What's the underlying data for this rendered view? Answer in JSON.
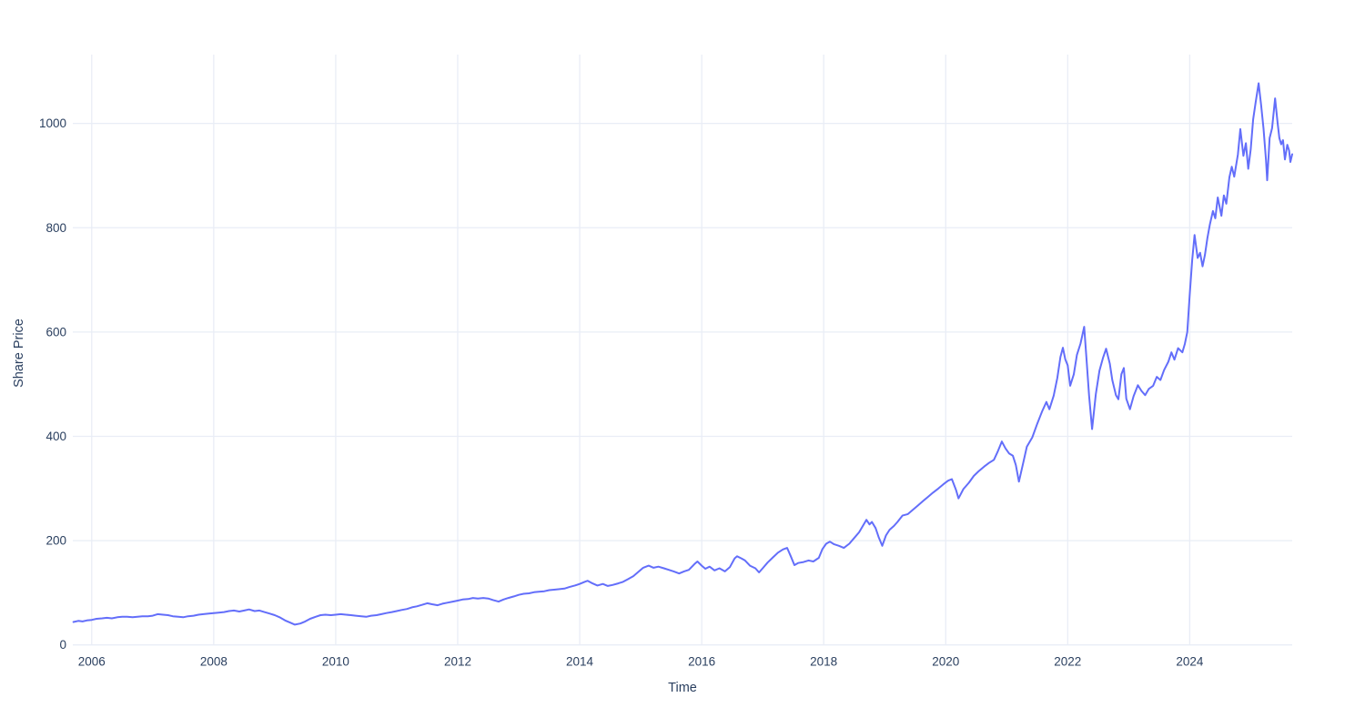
{
  "chart_data": {
    "type": "line",
    "title": "",
    "xlabel": "Time",
    "ylabel": "Share Price",
    "legend_position": "none",
    "grid": true,
    "xlim": [
      2005.69,
      2025.68
    ],
    "ylim": [
      0,
      1132
    ],
    "x_ticks": {
      "values": [
        2006,
        2008,
        2010,
        2012,
        2014,
        2016,
        2018,
        2020,
        2022,
        2024
      ],
      "labels": [
        "2006",
        "2008",
        "2010",
        "2012",
        "2014",
        "2016",
        "2018",
        "2020",
        "2022",
        "2024"
      ]
    },
    "y_ticks": {
      "values": [
        0,
        200,
        400,
        600,
        800,
        1000
      ],
      "labels": [
        "0",
        "200",
        "400",
        "600",
        "800",
        "1000"
      ]
    },
    "colors": {
      "line": "#636EFA",
      "grid": "#E9EDF6",
      "text": "#2a3f5f",
      "background": "#ffffff"
    },
    "series": [
      {
        "name": "Share Price",
        "points": [
          [
            2005.7,
            44
          ],
          [
            2005.78,
            46
          ],
          [
            2005.85,
            45
          ],
          [
            2005.92,
            47
          ],
          [
            2006.0,
            48
          ],
          [
            2006.08,
            50
          ],
          [
            2006.17,
            51
          ],
          [
            2006.25,
            52
          ],
          [
            2006.33,
            51
          ],
          [
            2006.42,
            53
          ],
          [
            2006.5,
            54
          ],
          [
            2006.58,
            54
          ],
          [
            2006.67,
            53
          ],
          [
            2006.75,
            54
          ],
          [
            2006.83,
            55
          ],
          [
            2006.92,
            55
          ],
          [
            2007.0,
            56
          ],
          [
            2007.08,
            59
          ],
          [
            2007.17,
            58
          ],
          [
            2007.25,
            57
          ],
          [
            2007.33,
            55
          ],
          [
            2007.42,
            54
          ],
          [
            2007.5,
            53
          ],
          [
            2007.58,
            55
          ],
          [
            2007.67,
            56
          ],
          [
            2007.75,
            58
          ],
          [
            2007.83,
            59
          ],
          [
            2007.92,
            60
          ],
          [
            2008.0,
            61
          ],
          [
            2008.08,
            62
          ],
          [
            2008.17,
            63
          ],
          [
            2008.25,
            65
          ],
          [
            2008.33,
            66
          ],
          [
            2008.42,
            64
          ],
          [
            2008.5,
            66
          ],
          [
            2008.58,
            68
          ],
          [
            2008.67,
            65
          ],
          [
            2008.75,
            66
          ],
          [
            2008.83,
            63
          ],
          [
            2008.92,
            60
          ],
          [
            2009.0,
            57
          ],
          [
            2009.08,
            53
          ],
          [
            2009.17,
            47
          ],
          [
            2009.25,
            43
          ],
          [
            2009.33,
            39
          ],
          [
            2009.42,
            41
          ],
          [
            2009.5,
            45
          ],
          [
            2009.58,
            50
          ],
          [
            2009.67,
            54
          ],
          [
            2009.75,
            57
          ],
          [
            2009.83,
            58
          ],
          [
            2009.92,
            57
          ],
          [
            2010.0,
            58
          ],
          [
            2010.08,
            59
          ],
          [
            2010.17,
            58
          ],
          [
            2010.25,
            57
          ],
          [
            2010.33,
            56
          ],
          [
            2010.42,
            55
          ],
          [
            2010.5,
            54
          ],
          [
            2010.58,
            56
          ],
          [
            2010.67,
            57
          ],
          [
            2010.75,
            59
          ],
          [
            2010.83,
            61
          ],
          [
            2010.92,
            63
          ],
          [
            2011.0,
            65
          ],
          [
            2011.08,
            67
          ],
          [
            2011.17,
            69
          ],
          [
            2011.25,
            72
          ],
          [
            2011.33,
            74
          ],
          [
            2011.42,
            77
          ],
          [
            2011.5,
            80
          ],
          [
            2011.58,
            78
          ],
          [
            2011.67,
            76
          ],
          [
            2011.75,
            79
          ],
          [
            2011.83,
            81
          ],
          [
            2011.92,
            83
          ],
          [
            2012.0,
            85
          ],
          [
            2012.08,
            87
          ],
          [
            2012.17,
            88
          ],
          [
            2012.25,
            90
          ],
          [
            2012.33,
            89
          ],
          [
            2012.42,
            90
          ],
          [
            2012.5,
            89
          ],
          [
            2012.58,
            86
          ],
          [
            2012.67,
            83
          ],
          [
            2012.75,
            87
          ],
          [
            2012.83,
            90
          ],
          [
            2012.92,
            93
          ],
          [
            2013.0,
            96
          ],
          [
            2013.08,
            98
          ],
          [
            2013.17,
            99
          ],
          [
            2013.25,
            101
          ],
          [
            2013.33,
            102
          ],
          [
            2013.42,
            103
          ],
          [
            2013.5,
            105
          ],
          [
            2013.58,
            106
          ],
          [
            2013.67,
            107
          ],
          [
            2013.75,
            108
          ],
          [
            2013.83,
            111
          ],
          [
            2013.92,
            114
          ],
          [
            2014.0,
            117
          ],
          [
            2014.08,
            121
          ],
          [
            2014.13,
            123
          ],
          [
            2014.21,
            118
          ],
          [
            2014.29,
            114
          ],
          [
            2014.38,
            117
          ],
          [
            2014.46,
            113
          ],
          [
            2014.54,
            115
          ],
          [
            2014.63,
            118
          ],
          [
            2014.71,
            121
          ],
          [
            2014.79,
            126
          ],
          [
            2014.88,
            132
          ],
          [
            2014.96,
            140
          ],
          [
            2015.04,
            148
          ],
          [
            2015.13,
            152
          ],
          [
            2015.21,
            148
          ],
          [
            2015.29,
            150
          ],
          [
            2015.38,
            147
          ],
          [
            2015.46,
            144
          ],
          [
            2015.54,
            141
          ],
          [
            2015.63,
            137
          ],
          [
            2015.71,
            141
          ],
          [
            2015.79,
            144
          ],
          [
            2015.88,
            155
          ],
          [
            2015.93,
            160
          ],
          [
            2016.0,
            152
          ],
          [
            2016.06,
            146
          ],
          [
            2016.13,
            150
          ],
          [
            2016.21,
            143
          ],
          [
            2016.29,
            147
          ],
          [
            2016.38,
            141
          ],
          [
            2016.46,
            149
          ],
          [
            2016.54,
            166
          ],
          [
            2016.58,
            170
          ],
          [
            2016.65,
            166
          ],
          [
            2016.71,
            162
          ],
          [
            2016.79,
            152
          ],
          [
            2016.88,
            147
          ],
          [
            2016.94,
            139
          ],
          [
            2017.0,
            147
          ],
          [
            2017.08,
            158
          ],
          [
            2017.17,
            168
          ],
          [
            2017.25,
            177
          ],
          [
            2017.33,
            183
          ],
          [
            2017.4,
            186
          ],
          [
            2017.46,
            170
          ],
          [
            2017.52,
            153
          ],
          [
            2017.58,
            157
          ],
          [
            2017.67,
            159
          ],
          [
            2017.75,
            162
          ],
          [
            2017.83,
            160
          ],
          [
            2017.92,
            167
          ],
          [
            2017.98,
            184
          ],
          [
            2018.04,
            194
          ],
          [
            2018.1,
            198
          ],
          [
            2018.17,
            193
          ],
          [
            2018.25,
            190
          ],
          [
            2018.33,
            186
          ],
          [
            2018.42,
            194
          ],
          [
            2018.5,
            205
          ],
          [
            2018.58,
            216
          ],
          [
            2018.65,
            230
          ],
          [
            2018.7,
            240
          ],
          [
            2018.75,
            231
          ],
          [
            2018.79,
            236
          ],
          [
            2018.85,
            224
          ],
          [
            2018.9,
            207
          ],
          [
            2018.96,
            190
          ],
          [
            2019.02,
            210
          ],
          [
            2019.08,
            221
          ],
          [
            2019.15,
            228
          ],
          [
            2019.21,
            236
          ],
          [
            2019.29,
            248
          ],
          [
            2019.38,
            251
          ],
          [
            2019.46,
            259
          ],
          [
            2019.54,
            267
          ],
          [
            2019.63,
            276
          ],
          [
            2019.71,
            284
          ],
          [
            2019.79,
            292
          ],
          [
            2019.88,
            300
          ],
          [
            2019.96,
            308
          ],
          [
            2020.04,
            315
          ],
          [
            2020.1,
            318
          ],
          [
            2020.17,
            297
          ],
          [
            2020.21,
            281
          ],
          [
            2020.29,
            299
          ],
          [
            2020.38,
            311
          ],
          [
            2020.46,
            324
          ],
          [
            2020.54,
            333
          ],
          [
            2020.63,
            342
          ],
          [
            2020.71,
            349
          ],
          [
            2020.79,
            355
          ],
          [
            2020.85,
            370
          ],
          [
            2020.92,
            390
          ],
          [
            2020.98,
            377
          ],
          [
            2021.04,
            367
          ],
          [
            2021.1,
            363
          ],
          [
            2021.15,
            345
          ],
          [
            2021.2,
            313
          ],
          [
            2021.27,
            349
          ],
          [
            2021.33,
            380
          ],
          [
            2021.42,
            398
          ],
          [
            2021.5,
            424
          ],
          [
            2021.58,
            448
          ],
          [
            2021.65,
            466
          ],
          [
            2021.7,
            452
          ],
          [
            2021.77,
            478
          ],
          [
            2021.83,
            512
          ],
          [
            2021.88,
            552
          ],
          [
            2021.92,
            570
          ],
          [
            2021.96,
            548
          ],
          [
            2022.0,
            536
          ],
          [
            2022.04,
            497
          ],
          [
            2022.1,
            519
          ],
          [
            2022.15,
            556
          ],
          [
            2022.21,
            578
          ],
          [
            2022.27,
            610
          ],
          [
            2022.31,
            545
          ],
          [
            2022.35,
            478
          ],
          [
            2022.4,
            414
          ],
          [
            2022.46,
            481
          ],
          [
            2022.52,
            526
          ],
          [
            2022.58,
            551
          ],
          [
            2022.63,
            568
          ],
          [
            2022.69,
            539
          ],
          [
            2022.73,
            508
          ],
          [
            2022.79,
            479
          ],
          [
            2022.83,
            471
          ],
          [
            2022.88,
            519
          ],
          [
            2022.92,
            531
          ],
          [
            2022.96,
            472
          ],
          [
            2023.02,
            452
          ],
          [
            2023.08,
            477
          ],
          [
            2023.15,
            498
          ],
          [
            2023.21,
            487
          ],
          [
            2023.27,
            479
          ],
          [
            2023.33,
            491
          ],
          [
            2023.4,
            497
          ],
          [
            2023.46,
            514
          ],
          [
            2023.52,
            508
          ],
          [
            2023.58,
            527
          ],
          [
            2023.65,
            543
          ],
          [
            2023.7,
            561
          ],
          [
            2023.75,
            547
          ],
          [
            2023.81,
            569
          ],
          [
            2023.88,
            561
          ],
          [
            2023.92,
            577
          ],
          [
            2023.96,
            600
          ],
          [
            2024.0,
            672
          ],
          [
            2024.04,
            738
          ],
          [
            2024.08,
            786
          ],
          [
            2024.13,
            742
          ],
          [
            2024.17,
            752
          ],
          [
            2024.21,
            726
          ],
          [
            2024.25,
            748
          ],
          [
            2024.29,
            780
          ],
          [
            2024.33,
            806
          ],
          [
            2024.38,
            832
          ],
          [
            2024.42,
            818
          ],
          [
            2024.46,
            858
          ],
          [
            2024.52,
            823
          ],
          [
            2024.56,
            862
          ],
          [
            2024.6,
            846
          ],
          [
            2024.65,
            897
          ],
          [
            2024.69,
            917
          ],
          [
            2024.73,
            898
          ],
          [
            2024.79,
            940
          ],
          [
            2024.83,
            989
          ],
          [
            2024.88,
            938
          ],
          [
            2024.92,
            962
          ],
          [
            2024.96,
            913
          ],
          [
            2025.0,
            950
          ],
          [
            2025.04,
            1008
          ],
          [
            2025.08,
            1040
          ],
          [
            2025.13,
            1077
          ],
          [
            2025.17,
            1036
          ],
          [
            2025.21,
            990
          ],
          [
            2025.25,
            930
          ],
          [
            2025.27,
            891
          ],
          [
            2025.31,
            972
          ],
          [
            2025.35,
            991
          ],
          [
            2025.4,
            1048
          ],
          [
            2025.44,
            1002
          ],
          [
            2025.47,
            972
          ],
          [
            2025.5,
            960
          ],
          [
            2025.53,
            968
          ],
          [
            2025.56,
            931
          ],
          [
            2025.6,
            959
          ],
          [
            2025.63,
            948
          ],
          [
            2025.65,
            926
          ],
          [
            2025.68,
            941
          ]
        ]
      }
    ]
  }
}
